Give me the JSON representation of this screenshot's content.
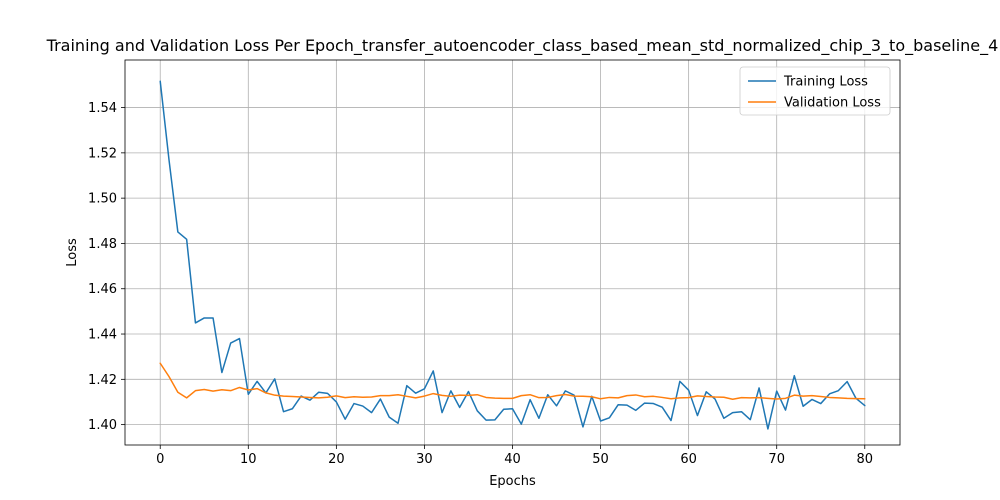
{
  "chart_data": {
    "type": "line",
    "title": "Training and Validation Loss Per Epoch_transfer_autoencoder_class_based_mean_std_normalized_chip_3_to_baseline_4",
    "xlabel": "Epochs",
    "ylabel": "Loss",
    "xlim": [
      -4,
      84
    ],
    "ylim": [
      1.391,
      1.561
    ],
    "xticks": [
      0,
      10,
      20,
      30,
      40,
      50,
      60,
      70,
      80
    ],
    "yticks": [
      1.4,
      1.42,
      1.44,
      1.46,
      1.48,
      1.5,
      1.52,
      1.54
    ],
    "ytick_labels": [
      "1.40",
      "1.42",
      "1.44",
      "1.46",
      "1.48",
      "1.50",
      "1.52",
      "1.54"
    ],
    "grid": true,
    "legend_position": "upper right",
    "series": [
      {
        "name": "Training Loss",
        "color": "#1f77b4",
        "values": [
          1.5516,
          1.5168,
          1.4851,
          1.4818,
          1.4449,
          1.4471,
          1.4471,
          1.423,
          1.436,
          1.438,
          1.4134,
          1.4191,
          1.414,
          1.4202,
          1.4057,
          1.407,
          1.4126,
          1.4108,
          1.4143,
          1.4138,
          1.41,
          1.4024,
          1.4093,
          1.4082,
          1.4053,
          1.4113,
          1.4033,
          1.4006,
          1.4172,
          1.4139,
          1.4158,
          1.4237,
          1.4053,
          1.4149,
          1.4076,
          1.4146,
          1.4061,
          1.402,
          1.4021,
          1.4068,
          1.407,
          1.4002,
          1.411,
          1.4028,
          1.4132,
          1.4083,
          1.4149,
          1.413,
          1.399,
          1.4125,
          1.4016,
          1.403,
          1.4088,
          1.4086,
          1.4063,
          1.4095,
          1.4093,
          1.4077,
          1.4018,
          1.4191,
          1.4152,
          1.404,
          1.4145,
          1.4113,
          1.4028,
          1.4053,
          1.4057,
          1.4022,
          1.4162,
          1.3981,
          1.4148,
          1.4064,
          1.4216,
          1.4081,
          1.4111,
          1.4093,
          1.4136,
          1.415,
          1.419,
          1.4116,
          1.4084
        ]
      },
      {
        "name": "Validation Loss",
        "color": "#ff7f0e",
        "values": [
          1.4271,
          1.4212,
          1.4143,
          1.4118,
          1.415,
          1.4155,
          1.4148,
          1.4154,
          1.415,
          1.4164,
          1.4153,
          1.4159,
          1.414,
          1.413,
          1.4126,
          1.4124,
          1.4122,
          1.412,
          1.4118,
          1.4121,
          1.4127,
          1.4119,
          1.4123,
          1.4121,
          1.4122,
          1.4128,
          1.4128,
          1.4132,
          1.4125,
          1.4118,
          1.4126,
          1.4137,
          1.4129,
          1.4125,
          1.413,
          1.4129,
          1.4132,
          1.412,
          1.4117,
          1.4116,
          1.4116,
          1.4128,
          1.4132,
          1.4119,
          1.412,
          1.4128,
          1.4133,
          1.4126,
          1.4125,
          1.4123,
          1.4114,
          1.412,
          1.4118,
          1.4128,
          1.4131,
          1.4123,
          1.4125,
          1.412,
          1.4114,
          1.4118,
          1.4119,
          1.4127,
          1.4124,
          1.4122,
          1.4121,
          1.4112,
          1.4119,
          1.4118,
          1.4119,
          1.4116,
          1.4113,
          1.4116,
          1.413,
          1.4126,
          1.4128,
          1.4124,
          1.412,
          1.4118,
          1.4116,
          1.4115,
          1.4114
        ]
      }
    ]
  }
}
